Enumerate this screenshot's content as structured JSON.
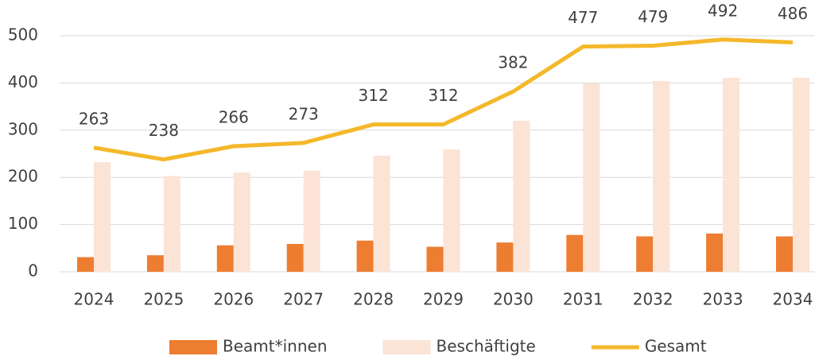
{
  "chart_data": {
    "type": "bar-line",
    "categories": [
      "2024",
      "2025",
      "2026",
      "2027",
      "2028",
      "2029",
      "2030",
      "2031",
      "2032",
      "2033",
      "2034"
    ],
    "series": [
      {
        "name": "Beamt*innen",
        "type": "bar",
        "color": "#ed7d31",
        "values": [
          31,
          35,
          56,
          59,
          66,
          53,
          62,
          78,
          75,
          81,
          75
        ]
      },
      {
        "name": "Beschäftigte",
        "type": "bar",
        "color": "#fbe3d6",
        "values": [
          232,
          203,
          210,
          214,
          246,
          259,
          320,
          399,
          404,
          411,
          411
        ]
      },
      {
        "name": "Gesamt",
        "type": "line",
        "color": "#f4b82a",
        "values": [
          263,
          238,
          266,
          273,
          312,
          312,
          382,
          477,
          479,
          492,
          486
        ]
      }
    ],
    "ylim": [
      0,
      500
    ],
    "yticks": [
      0,
      100,
      200,
      300,
      400,
      500
    ],
    "grid": true,
    "legend": "bottom"
  }
}
